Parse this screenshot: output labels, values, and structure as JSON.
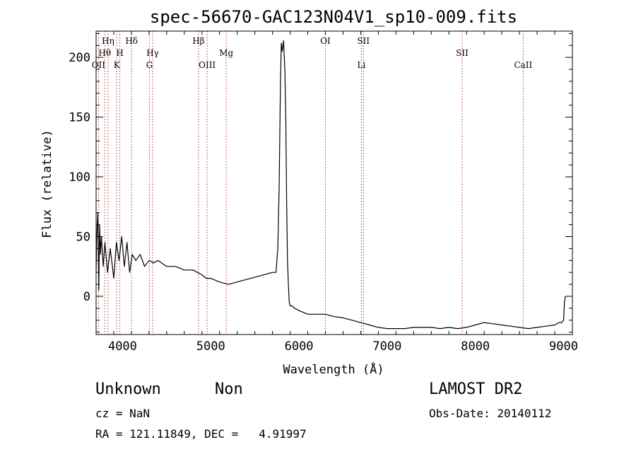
{
  "chart_data": {
    "type": "line",
    "title": "spec-56670-GAC123N04V1_sp10-009.fits",
    "xlabel": "Wavelength (Å)",
    "ylabel": "Flux (relative)",
    "xlim": [
      3700,
      9100
    ],
    "ylim": [
      -32,
      222
    ],
    "xticks": [
      4000,
      5000,
      6000,
      7000,
      8000,
      9000
    ],
    "yticks": [
      0,
      50,
      100,
      150,
      200
    ],
    "grid": false,
    "series": [
      {
        "x": [
          3700,
          3710,
          3720,
          3730,
          3740,
          3750,
          3760,
          3780,
          3800,
          3830,
          3860,
          3900,
          3930,
          3960,
          3990,
          4020,
          4050,
          4080,
          4110,
          4150,
          4200,
          4250,
          4300,
          4350,
          4400,
          4500,
          4600,
          4700,
          4800,
          4850,
          4900,
          4950,
          5000,
          5100,
          5200,
          5300,
          5400,
          5500,
          5600,
          5700,
          5740,
          5760,
          5775,
          5790,
          5800,
          5810,
          5825,
          5840,
          5850,
          5860,
          5870,
          5880,
          5890,
          5900,
          5920,
          5950,
          6000,
          6100,
          6200,
          6300,
          6400,
          6500,
          6600,
          6700,
          6800,
          6900,
          7000,
          7100,
          7200,
          7300,
          7400,
          7500,
          7600,
          7700,
          7800,
          7900,
          8000,
          8100,
          8200,
          8300,
          8400,
          8500,
          8600,
          8700,
          8800,
          8900,
          8950,
          8980,
          9000,
          9010,
          9020
        ],
        "y": [
          20,
          55,
          70,
          5,
          60,
          35,
          50,
          25,
          45,
          20,
          40,
          15,
          45,
          30,
          50,
          25,
          45,
          20,
          35,
          30,
          35,
          25,
          30,
          28,
          30,
          25,
          25,
          22,
          22,
          20,
          18,
          15,
          15,
          12,
          10,
          12,
          14,
          16,
          18,
          20,
          20,
          40,
          90,
          180,
          212,
          205,
          214,
          190,
          150,
          80,
          30,
          10,
          -5,
          -8,
          -8,
          -10,
          -12,
          -15,
          -15,
          -15,
          -17,
          -18,
          -20,
          -22,
          -24,
          -26,
          -27,
          -27,
          -27,
          -26,
          -26,
          -26,
          -27,
          -26,
          -27,
          -26,
          -24,
          -22,
          -23,
          -24,
          -25,
          -26,
          -27,
          -26,
          -25,
          -24,
          -22,
          -22,
          -20,
          -5,
          0
        ]
      }
    ],
    "spectral_lines": [
      {
        "name": "OII",
        "wavelength": 3727,
        "row": 3
      },
      {
        "name": "Hθ",
        "wavelength": 3798,
        "row": 2
      },
      {
        "name": "Hη",
        "wavelength": 3835,
        "row": 1
      },
      {
        "name": "K",
        "wavelength": 3934,
        "row": 3
      },
      {
        "name": "H",
        "wavelength": 3969,
        "row": 2
      },
      {
        "name": "Hδ",
        "wavelength": 4102,
        "row": 1
      },
      {
        "name": "G",
        "wavelength": 4304,
        "row": 3
      },
      {
        "name": "Hγ",
        "wavelength": 4341,
        "row": 2
      },
      {
        "name": "Hβ",
        "wavelength": 4861,
        "row": 1
      },
      {
        "name": "OIII",
        "wavelength": 4959,
        "row": 3
      },
      {
        "name": "Mg",
        "wavelength": 5175,
        "row": 2
      },
      {
        "name": "OI",
        "wavelength": 6300,
        "row": 1
      },
      {
        "name": "Li",
        "wavelength": 6708,
        "row": 3
      },
      {
        "name": "SII",
        "wavelength": 6731,
        "row": 1
      },
      {
        "name": "SII",
        "wavelength": 7850,
        "row": 2
      },
      {
        "name": "CaII",
        "wavelength": 8542,
        "row": 3
      }
    ]
  },
  "info": {
    "classification": "Unknown",
    "subclass": "Non",
    "survey": "LAMOST DR2",
    "cz": "cz = NaN",
    "obs_date": "Obs-Date: 20140112",
    "coords": "RA = 121.11849, DEC =   4.91997"
  },
  "colors": {
    "axis": "#000000",
    "spectrum": "#000000",
    "line_marker": "#b03030"
  }
}
